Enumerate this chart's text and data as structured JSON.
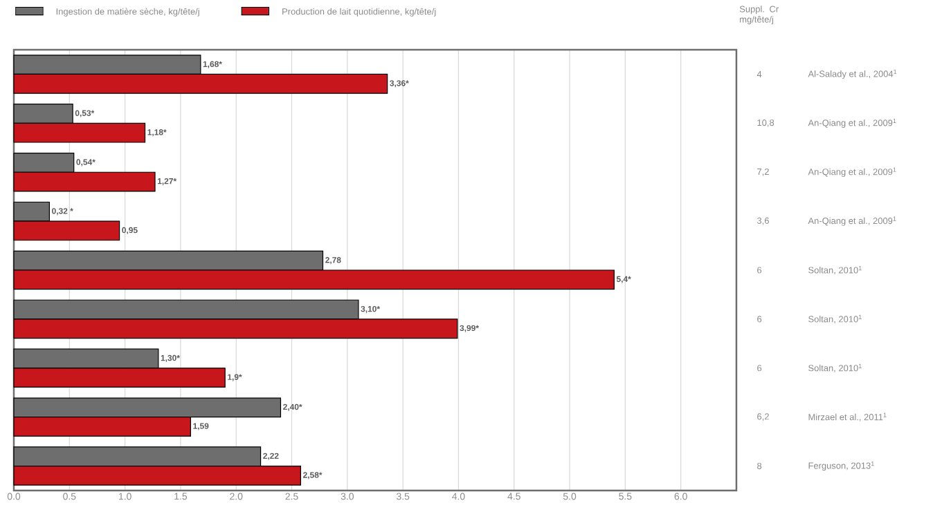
{
  "chart_data": {
    "type": "bar",
    "orientation": "horizontal",
    "categories": [
      "Al-Salady et al., 2004$^{1}$",
      "An-Qiang et al., 2009$^{1}$",
      "An-Qiang et al., 2009$^{1}$",
      "An-Qiang et al., 2009$^{1}$",
      "Soltan, 2010$^{1}$",
      "Soltan, 2010$^{1}$",
      "Soltan, 2010$^{1}$",
      "Mirzael et al., 2011$^{1}$",
      "Ferguson, 2013$^{1}$"
    ],
    "series": [
      {
        "name": "Ingestion de matière sèche, kg/tête/j",
        "color": "#6e6e6e",
        "values": [
          1.68,
          0.53,
          0.54,
          0.32,
          2.78,
          3.1,
          1.3,
          2.4,
          2.22
        ],
        "value_labels": [
          "1,68*",
          "0,53*",
          "0,54*",
          "0,32 *",
          "2,78",
          "3,10*",
          "1,30*",
          "2,40*",
          "2,22"
        ]
      },
      {
        "name": "Production de lait quotidienne, kg/tête/j",
        "color": "#c8161d",
        "values": [
          3.36,
          1.18,
          1.27,
          0.95,
          5.4,
          3.99,
          1.9,
          1.59,
          2.58
        ],
        "value_labels": [
          "3,36*",
          "1,18*",
          "1,27*",
          "0,95",
          "5,4*",
          "3,99*",
          "1,9*",
          "1,59",
          "2,58*"
        ]
      }
    ],
    "xlim": [
      0,
      6.5
    ],
    "xticks": [
      {
        "value": 0,
        "label": "0.0"
      },
      {
        "value": 0.5,
        "label": "0.5"
      },
      {
        "value": 1,
        "label": "1.0"
      },
      {
        "value": 1.5,
        "label": "1.5"
      },
      {
        "value": 2,
        "label": "2.0"
      },
      {
        "value": 2.5,
        "label": "2.5"
      },
      {
        "value": 3,
        "label": "3.0"
      },
      {
        "value": 3.5,
        "label": "3.5"
      },
      {
        "value": 4,
        "label": "4.0"
      },
      {
        "value": 4.5,
        "label": "4.5"
      },
      {
        "value": 5,
        "label": "5.0"
      },
      {
        "value": 5.5,
        "label": "5.5"
      },
      {
        "value": 6,
        "label": "6.0"
      }
    ],
    "grid": "x",
    "legend": "top",
    "annotations": [
      "Suppl. Cr mg/tête/j",
      "4",
      "10,8",
      "7,2",
      "3,6",
      "6",
      "6",
      "6",
      "6,2",
      "8"
    ]
  }
}
